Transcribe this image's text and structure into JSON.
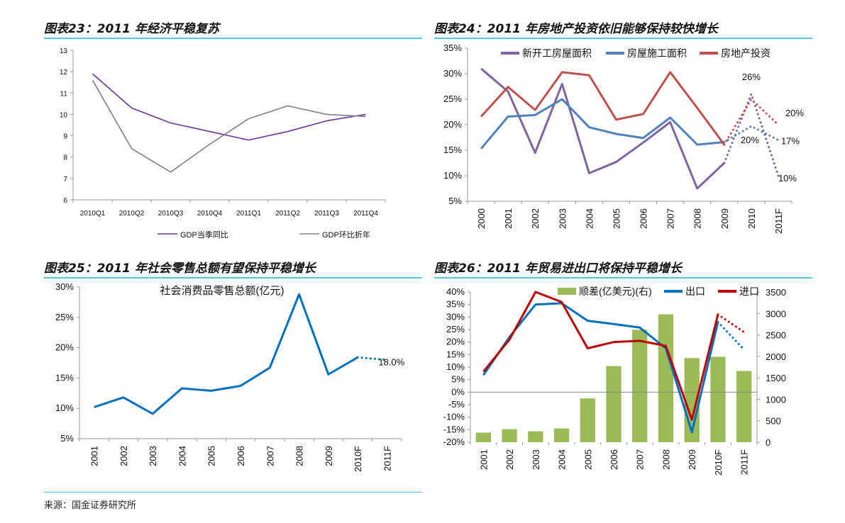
{
  "panels": {
    "p23_title": "图表23：2011 年经济平稳复苏",
    "p24_title": "图表24：2011 年房地产投资依旧能够保持较快增长",
    "p25_title": "图表25：2011 年社会零售总额有望保持平稳增长",
    "p26_title": "图表26：2011 年贸易进出口将保持平稳增长"
  },
  "source": "来源：国金证券研究所",
  "colors": {
    "rule": "#4fc3f7"
  },
  "chart_data": [
    {
      "id": "c23",
      "type": "line",
      "title": "",
      "categories": [
        "2010Q1",
        "2010Q2",
        "2010Q3",
        "2010Q4",
        "2011Q1",
        "2011Q2",
        "2011Q3",
        "2011Q4"
      ],
      "ylim": [
        6,
        13
      ],
      "yticks": [
        "13",
        "12",
        "11",
        "10",
        "9",
        "8",
        "7",
        "6"
      ],
      "ytick_values": [
        13,
        12,
        11,
        10,
        9,
        8,
        7,
        6
      ],
      "grid": false,
      "legend": "bottom",
      "series": [
        {
          "name": "GDP当季同比",
          "color": "#7030a0",
          "values": [
            11.9,
            10.3,
            9.6,
            9.2,
            8.8,
            9.2,
            9.7,
            10.0
          ]
        },
        {
          "name": "GDP环比折年",
          "color": "#808080",
          "values": [
            11.6,
            8.4,
            7.3,
            8.6,
            9.8,
            10.4,
            10.0,
            9.9
          ]
        }
      ]
    },
    {
      "id": "c24",
      "type": "line",
      "title": "",
      "categories": [
        "2000",
        "2001",
        "2002",
        "2003",
        "2004",
        "2005",
        "2006",
        "2007",
        "2008",
        "2009",
        "2010",
        "2011F"
      ],
      "ylim": [
        5,
        35
      ],
      "yticks": [
        "35%",
        "30%",
        "25%",
        "20%",
        "15%",
        "10%",
        "5%"
      ],
      "ytick_values": [
        35,
        30,
        25,
        20,
        15,
        10,
        5
      ],
      "grid": false,
      "legend": "top",
      "series": [
        {
          "name": "新开工房屋面积",
          "color": "#8064a2",
          "values": [
            31,
            26.5,
            14.5,
            28,
            10.5,
            12.7,
            16.5,
            20.5,
            7.5,
            12.5,
            26,
            10
          ],
          "forecast_from": 9
        },
        {
          "name": "房屋施工面积",
          "color": "#4f81bd",
          "values": [
            15.3,
            21.6,
            21.9,
            25,
            19.5,
            18.2,
            17.4,
            21.4,
            16.1,
            16.6,
            19.7,
            17
          ],
          "forecast_from": 9
        },
        {
          "name": "房地产投资",
          "color": "#c0504d",
          "values": [
            21.6,
            27.4,
            22.9,
            30.3,
            29.7,
            21,
            22.1,
            30.3,
            23.3,
            16.1,
            25,
            20
          ],
          "forecast_from": 9
        }
      ],
      "annotations": [
        {
          "text": "26%",
          "series": 0,
          "index": 10
        },
        {
          "text": "20%",
          "series": 1,
          "index": 10
        },
        {
          "text": "20%",
          "series": 2,
          "index": 11
        },
        {
          "text": "17%",
          "series": 1,
          "index": 11
        },
        {
          "text": "10%",
          "series": 0,
          "index": 11
        }
      ]
    },
    {
      "id": "c25",
      "type": "line",
      "title": "社会消费品零售总额(亿元)",
      "categories": [
        "2001",
        "2002",
        "2003",
        "2004",
        "2005",
        "2006",
        "2007",
        "2008",
        "2009",
        "2010F",
        "2011F"
      ],
      "ylim": [
        5,
        30
      ],
      "yticks": [
        "30%",
        "25%",
        "20%",
        "15%",
        "10%",
        "5%"
      ],
      "ytick_values": [
        30,
        25,
        20,
        15,
        10,
        5
      ],
      "grid": false,
      "legend": "none",
      "series": [
        {
          "color": "#0070c0",
          "values": [
            10.2,
            11.8,
            9.1,
            13.3,
            12.9,
            13.7,
            16.7,
            28.8,
            15.6,
            18.4,
            18.0
          ],
          "forecast_from": 9
        }
      ],
      "annotations": [
        {
          "text": "18.0%",
          "series": 0,
          "index": 10
        }
      ]
    },
    {
      "id": "c26",
      "type": "bar+line",
      "title": "",
      "categories": [
        "2001",
        "2002",
        "2003",
        "2004",
        "2005",
        "2006",
        "2007",
        "2008",
        "2009",
        "2010F",
        "2011F"
      ],
      "ylim": [
        -20,
        40
      ],
      "yticks": [
        "40%",
        "35%",
        "30%",
        "25%",
        "20%",
        "15%",
        "10%",
        "5%",
        "0%",
        "-5%",
        "-10%",
        "-15%",
        "-20%"
      ],
      "ytick_values": [
        40,
        35,
        30,
        25,
        20,
        15,
        10,
        5,
        0,
        -5,
        -10,
        -15,
        -20
      ],
      "y2lim": [
        0,
        3500
      ],
      "y2ticks": [
        "3500",
        "3000",
        "2500",
        "2000",
        "1500",
        "1000",
        "500",
        "0"
      ],
      "y2tick_values": [
        3500,
        3000,
        2500,
        2000,
        1500,
        1000,
        500,
        0
      ],
      "grid": false,
      "legend": "top",
      "bars": {
        "name": "顺差(亿美元)(右)",
        "color": "#9bbb59",
        "values": [
          225,
          304,
          255,
          320,
          1020,
          1775,
          2620,
          2980,
          1960,
          1990,
          1660
        ]
      },
      "series": [
        {
          "name": "出口",
          "color": "#0070c0",
          "values": [
            6.8,
            22,
            35,
            35.5,
            28.5,
            27.2,
            25.8,
            17.5,
            -16,
            28,
            17
          ],
          "forecast_from": 9
        },
        {
          "name": "进口",
          "color": "#c00000",
          "values": [
            8.2,
            21,
            40,
            36,
            17.5,
            20,
            20.5,
            18.5,
            -11,
            31,
            24
          ],
          "forecast_from": 9
        }
      ]
    }
  ]
}
